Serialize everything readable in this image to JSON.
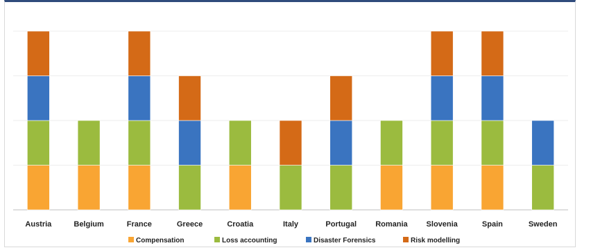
{
  "chart_data": {
    "type": "bar",
    "stacked": true,
    "categories": [
      "Austria",
      "Belgium",
      "France",
      "Greece",
      "Croatia",
      "Italy",
      "Portugal",
      "Romania",
      "Slovenia",
      "Spain",
      "Sweden"
    ],
    "series": [
      {
        "name": "Compensation",
        "color": "#f9a533",
        "values": [
          1,
          1,
          1,
          0,
          1,
          0,
          0,
          1,
          1,
          1,
          0
        ]
      },
      {
        "name": "Loss accounting",
        "color": "#9bbb3f",
        "values": [
          1,
          1,
          1,
          1,
          1,
          1,
          1,
          1,
          1,
          1,
          1
        ]
      },
      {
        "name": "Disaster Forensics",
        "color": "#3a74c0",
        "values": [
          1,
          0,
          1,
          1,
          0,
          0,
          1,
          0,
          1,
          1,
          1
        ]
      },
      {
        "name": "Risk modelling",
        "color": "#d46a17",
        "values": [
          1,
          0,
          1,
          1,
          0,
          1,
          1,
          0,
          1,
          1,
          0
        ]
      }
    ],
    "ylim": [
      0,
      4
    ],
    "grid": true,
    "legend_position": "bottom",
    "title": "",
    "xlabel": "",
    "ylabel": ""
  }
}
